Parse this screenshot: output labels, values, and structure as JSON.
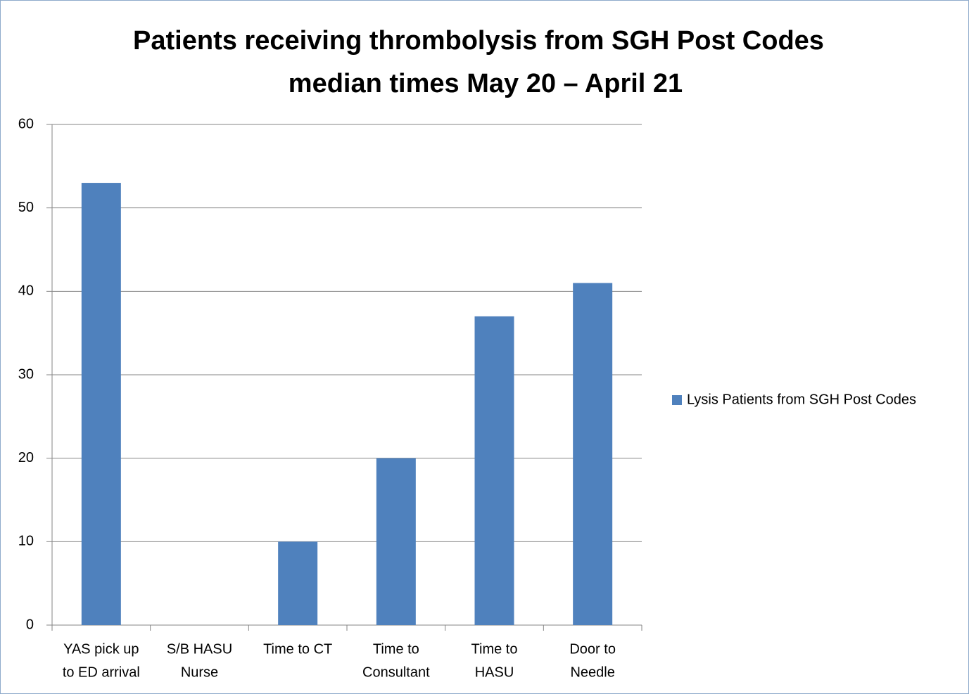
{
  "chart_data": {
    "type": "bar",
    "title": [
      "Patients receiving thrombolysis from SGH Post Codes",
      "median times May 20 – April 21"
    ],
    "categories": [
      [
        "YAS pick up",
        "to ED arrival"
      ],
      [
        "S/B HASU",
        "Nurse"
      ],
      [
        "Time to CT"
      ],
      [
        "Time to",
        "Consultant"
      ],
      [
        "Time to",
        "HASU"
      ],
      [
        "Door to",
        "Needle"
      ]
    ],
    "series": [
      {
        "name": "Lysis Patients from SGH Post Codes",
        "color": "#4f81bd",
        "values": [
          53,
          null,
          10,
          20,
          37,
          41
        ]
      }
    ],
    "ylim": [
      0,
      60
    ],
    "yticks": [
      0,
      10,
      20,
      30,
      40,
      50,
      60
    ],
    "grid": true,
    "legend": "right"
  }
}
